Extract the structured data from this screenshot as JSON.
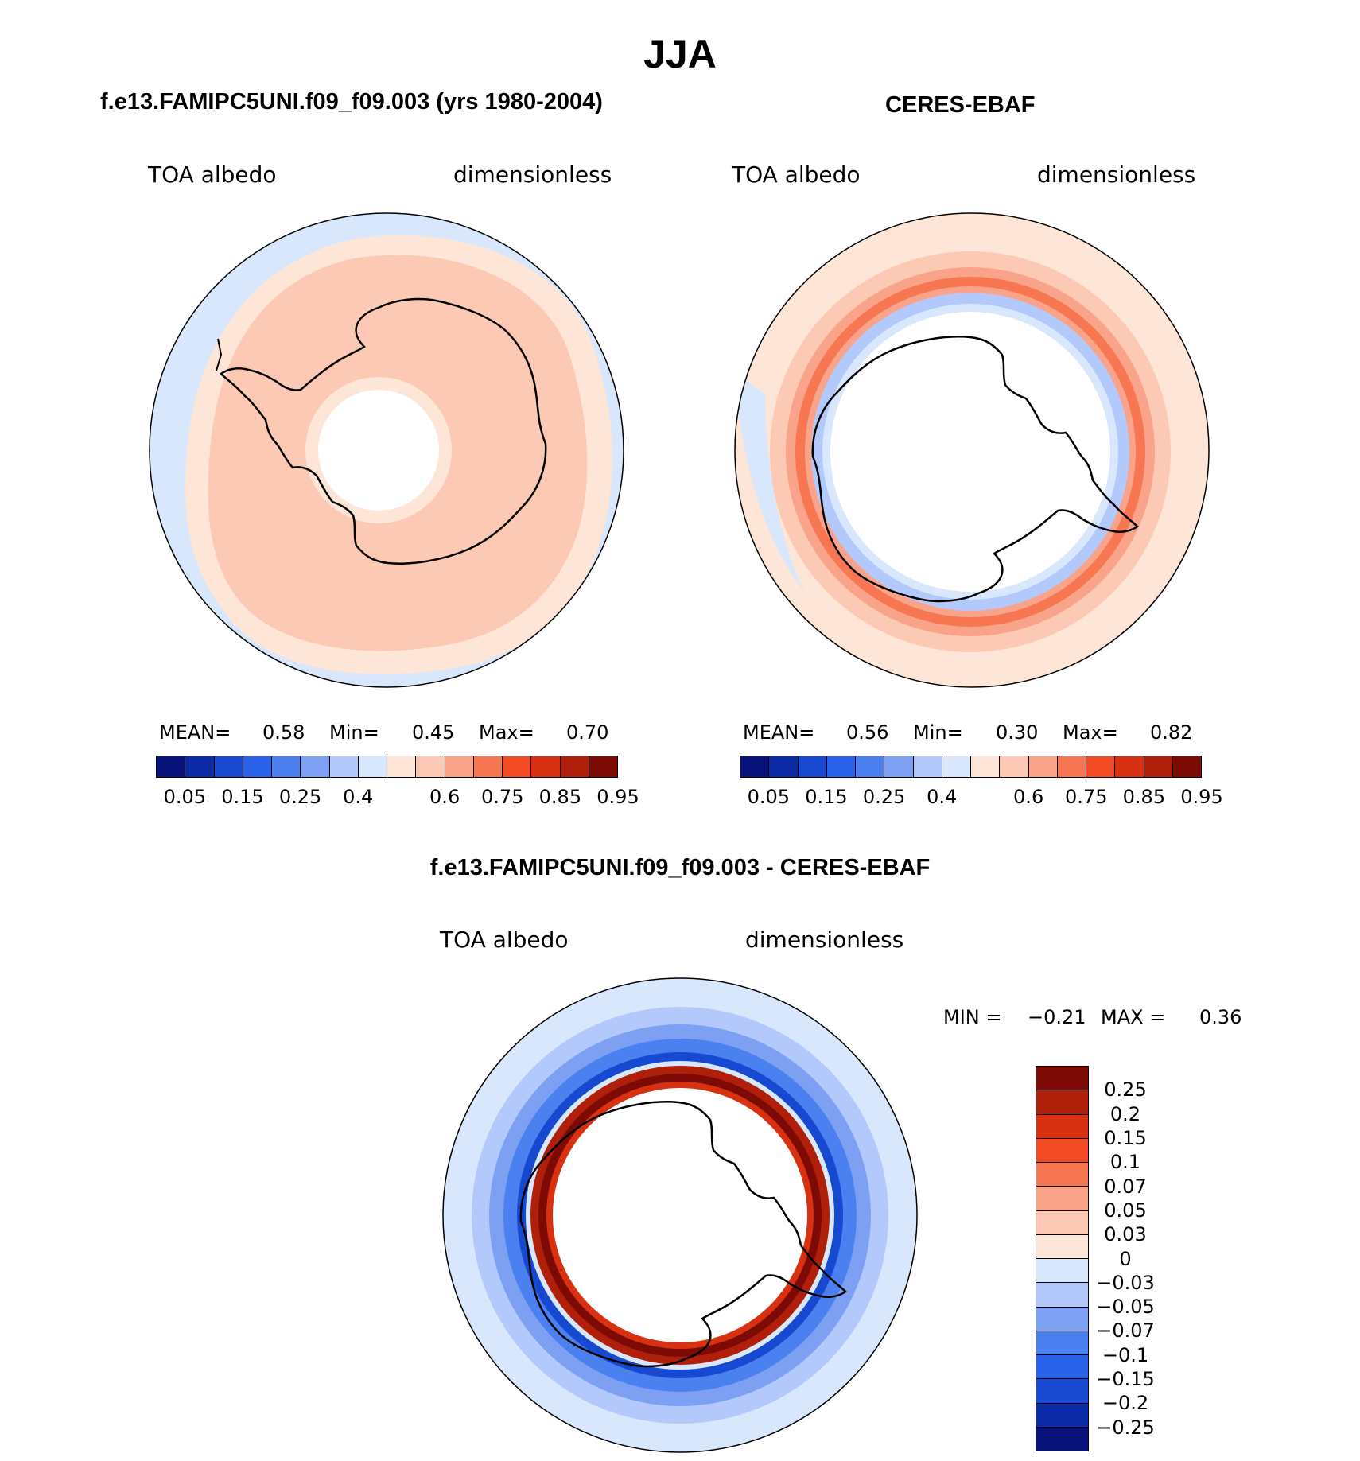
{
  "title": "JJA",
  "panels": {
    "model": {
      "subtitle": "f.e13.FAMIPC5UNI.f09_f09.003 (yrs 1980-2004)",
      "left_label": "TOA albedo",
      "right_label": "dimensionless",
      "stats": {
        "mean_label": "MEAN=",
        "mean": "0.58",
        "min_label": "Min=",
        "min": "0.45",
        "max_label": "Max=",
        "max": "0.70"
      }
    },
    "obs": {
      "subtitle": "CERES-EBAF",
      "left_label": "TOA albedo",
      "right_label": "dimensionless",
      "stats": {
        "mean_label": "MEAN=",
        "mean": "0.56",
        "min_label": "Min=",
        "min": "0.30",
        "max_label": "Max=",
        "max": "0.82"
      }
    },
    "diff": {
      "subtitle": "f.e13.FAMIPC5UNI.f09_f09.003 - CERES-EBAF",
      "left_label": "TOA albedo",
      "right_label": "dimensionless",
      "stats": {
        "min_label": "MIN =",
        "min": "−0.21",
        "max_label": "MAX =",
        "max": "0.36"
      }
    }
  },
  "colorbar_abs": {
    "colors": [
      "#08127a",
      "#0b2aa6",
      "#1748d0",
      "#2a63ea",
      "#4b80f0",
      "#7ea0f3",
      "#b3c9fb",
      "#d8e7fb",
      "#fde6d7",
      "#fcc9b4",
      "#f9a48a",
      "#f67752",
      "#f34c25",
      "#d83112",
      "#b01f0a",
      "#7d0a05"
    ],
    "ticks": [
      "0.05",
      "0.15",
      "0.25",
      "0.4",
      "0.6",
      "0.75",
      "0.85",
      "0.95"
    ]
  },
  "colorbar_diff": {
    "colors": [
      "#7d0a05",
      "#b01f0a",
      "#d83112",
      "#f34c25",
      "#f67752",
      "#f9a48a",
      "#fcc9b4",
      "#fde6d7",
      "#d8e7fb",
      "#b3c9fb",
      "#7ea0f3",
      "#4b80f0",
      "#2a63ea",
      "#1748d0",
      "#0b2aa6",
      "#08127a"
    ],
    "ticks": [
      "0.25",
      "0.2",
      "0.15",
      "0.1",
      "0.07",
      "0.05",
      "0.03",
      "0",
      "−0.03",
      "−0.05",
      "−0.07",
      "−0.1",
      "−0.15",
      "−0.2",
      "−0.25"
    ]
  }
}
